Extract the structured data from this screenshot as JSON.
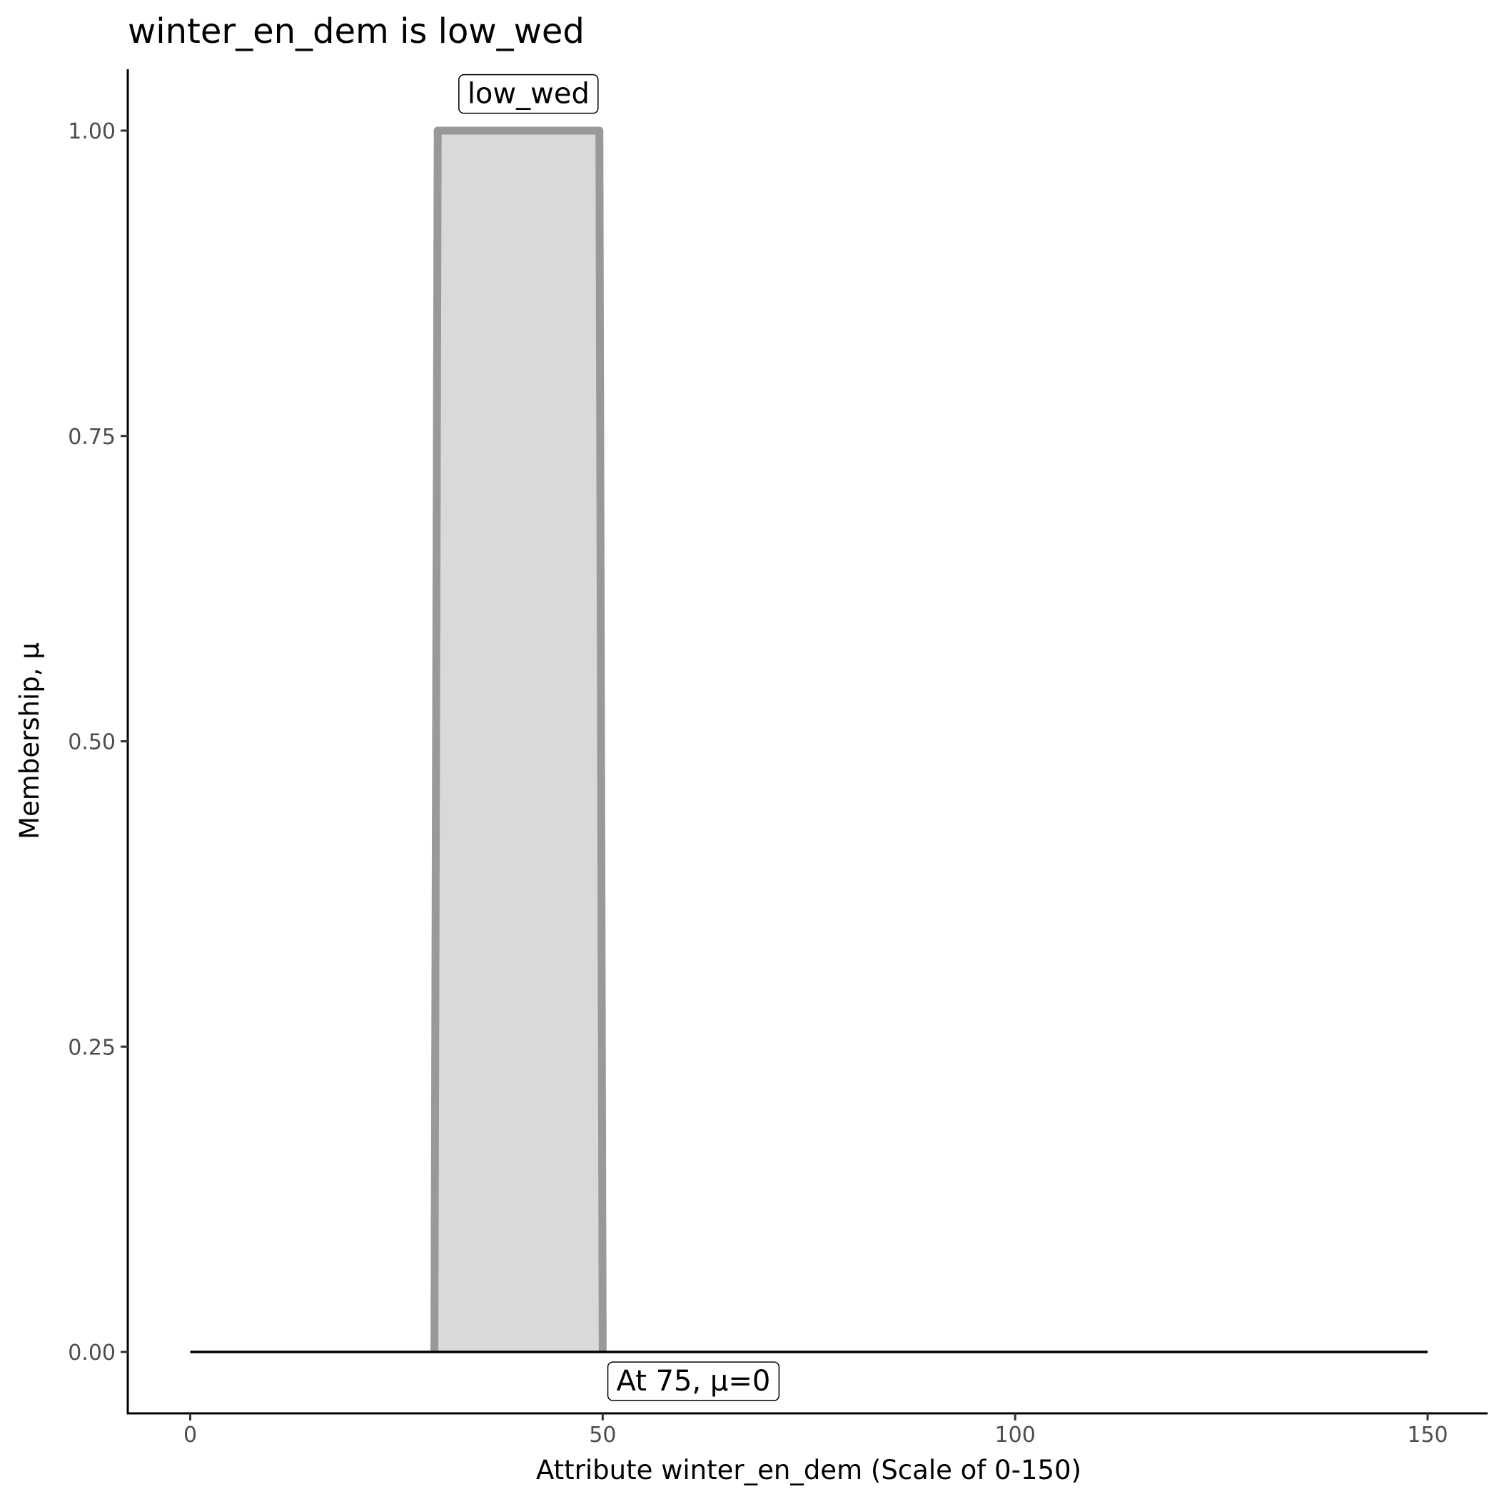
{
  "chart_data": {
    "type": "area",
    "title": "winter_en_dem is low_wed",
    "xlabel": "Attribute winter_en_dem (Scale of 0-150)",
    "ylabel": "Membership, μ",
    "xlim": [
      -7.5,
      157.5
    ],
    "ylim": [
      -0.05,
      1.05
    ],
    "x_ticks": [
      "0",
      "50",
      "100",
      "150"
    ],
    "x_tick_values": [
      0,
      50,
      100,
      150
    ],
    "y_ticks": [
      "0.00",
      "0.25",
      "0.50",
      "0.75",
      "1.00"
    ],
    "y_tick_values": [
      0,
      0.25,
      0.5,
      0.75,
      1
    ],
    "grid": false,
    "series": [
      {
        "name": "low_wed",
        "points": [
          [
            29.6,
            0
          ],
          [
            30,
            1
          ],
          [
            49.6,
            1
          ],
          [
            50,
            0
          ]
        ],
        "fill": "#d9d9d9",
        "stroke": "#999999"
      }
    ],
    "baseline": {
      "x": [
        0,
        150
      ],
      "y": 0,
      "color": "#000000"
    },
    "annotations": [
      {
        "text": "low_wed",
        "x": 41,
        "y": 1.03
      },
      {
        "text": "At 75, μ=0",
        "x": 61,
        "y": -0.024
      }
    ]
  }
}
